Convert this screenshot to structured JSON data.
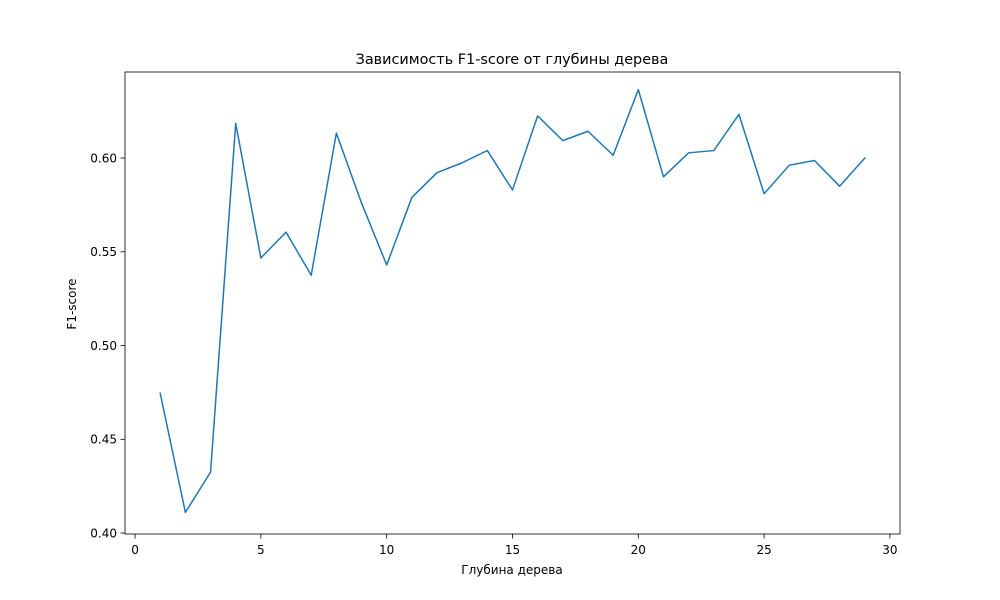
{
  "chart_data": {
    "type": "line",
    "title": "Зависимость F1-score от глубины дерева",
    "xlabel": "Глубина дерева",
    "ylabel": "F1-score",
    "xlim": [
      -0.4,
      30.4
    ],
    "ylim": [
      0.3995,
      0.6459
    ],
    "xticks": [
      0,
      5,
      10,
      15,
      20,
      25,
      30
    ],
    "xtick_labels": [
      "0",
      "5",
      "10",
      "15",
      "20",
      "25",
      "30"
    ],
    "yticks": [
      0.4,
      0.45,
      0.5,
      0.55,
      0.6
    ],
    "ytick_labels": [
      "0.40",
      "0.45",
      "0.50",
      "0.55",
      "0.60"
    ],
    "grid": false,
    "color": "#1f77b4",
    "series": [
      {
        "x": [
          1,
          2,
          3,
          4,
          5,
          6,
          7,
          8,
          9,
          10,
          11,
          12,
          13,
          14,
          15,
          16,
          17,
          18,
          19,
          20,
          21,
          22,
          23,
          24,
          25,
          26,
          27,
          28,
          29
        ],
        "values": [
          0.4745,
          0.411,
          0.4325,
          0.6185,
          0.5467,
          0.5605,
          0.5375,
          0.6133,
          0.576,
          0.543,
          0.579,
          0.5922,
          0.5975,
          0.604,
          0.583,
          0.6225,
          0.6093,
          0.6143,
          0.6015,
          0.6365,
          0.59,
          0.6028,
          0.604,
          0.6233,
          0.581,
          0.5962,
          0.5987,
          0.585,
          0.6
        ]
      }
    ]
  }
}
